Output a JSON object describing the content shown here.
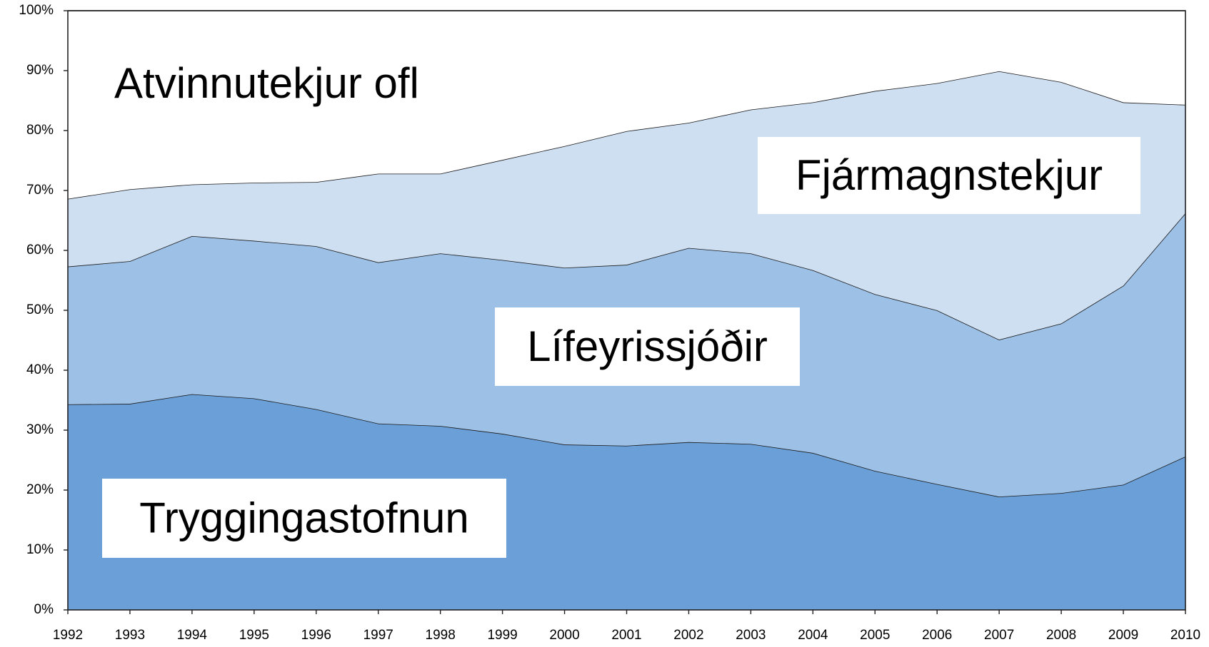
{
  "chart_data": {
    "type": "stacked_area",
    "x": [
      1992,
      1993,
      1994,
      1995,
      1996,
      1997,
      1998,
      1999,
      2000,
      2001,
      2002,
      2003,
      2004,
      2005,
      2006,
      2007,
      2008,
      2009,
      2010
    ],
    "xlim": [
      1992,
      2010
    ],
    "ylim": [
      0,
      100
    ],
    "yticks": [
      {
        "value": 0,
        "label": "0%"
      },
      {
        "value": 10,
        "label": "10%"
      },
      {
        "value": 20,
        "label": "20%"
      },
      {
        "value": 30,
        "label": "30%"
      },
      {
        "value": 40,
        "label": "40%"
      },
      {
        "value": 50,
        "label": "50%"
      },
      {
        "value": 60,
        "label": "60%"
      },
      {
        "value": 70,
        "label": "70%"
      },
      {
        "value": 80,
        "label": "80%"
      },
      {
        "value": 90,
        "label": "90%"
      },
      {
        "value": 100,
        "label": "100%"
      }
    ],
    "series": [
      {
        "name": "Tryggingastofnun",
        "color": "#6a9fd8",
        "values": [
          34.3,
          34.4,
          36.0,
          35.3,
          33.5,
          31.1,
          30.7,
          29.4,
          27.6,
          27.4,
          28.0,
          27.7,
          26.2,
          23.2,
          21.0,
          18.9,
          19.5,
          20.9,
          25.6
        ]
      },
      {
        "name": "Lífeyrissjóðir",
        "color": "#9dc1e6",
        "values": [
          23.0,
          23.8,
          26.4,
          26.3,
          27.2,
          26.9,
          28.8,
          29.0,
          29.5,
          30.2,
          32.4,
          31.8,
          30.5,
          29.5,
          29.0,
          26.2,
          28.3,
          33.2,
          40.6
        ]
      },
      {
        "name": "Fjármagnstekjur",
        "color": "#cfdff2",
        "values": [
          11.3,
          12.0,
          8.6,
          9.7,
          10.7,
          14.8,
          13.3,
          16.7,
          20.3,
          22.3,
          20.9,
          24.0,
          28.0,
          33.9,
          37.9,
          44.8,
          40.3,
          30.6,
          18.1
        ]
      },
      {
        "name": "Atvinnutekjur ofl",
        "color": "#ffffff",
        "values": [
          31.4,
          29.8,
          29.0,
          28.7,
          28.6,
          27.2,
          27.2,
          24.9,
          22.6,
          20.1,
          18.7,
          16.5,
          15.3,
          13.4,
          12.1,
          10.1,
          11.9,
          15.3,
          15.7
        ]
      }
    ]
  }
}
